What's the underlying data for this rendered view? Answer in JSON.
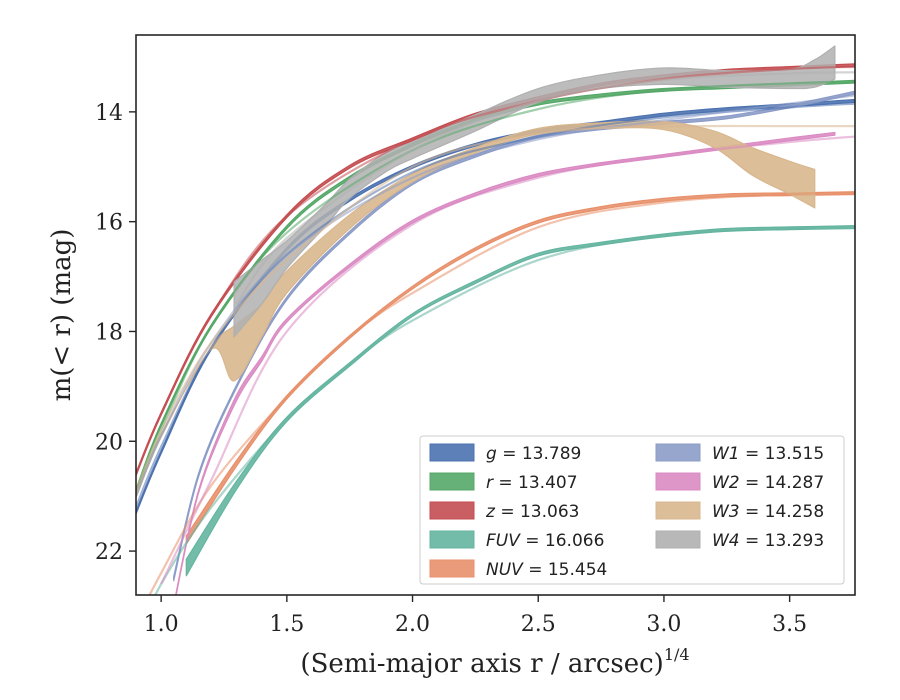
{
  "chart_data": {
    "type": "line",
    "title": "",
    "xlabel": "(Semi-major axis r / arcsec)",
    "xlabel_exponent": "1/4",
    "ylabel": "m(< r) (mag)",
    "xlim": [
      0.9,
      3.76
    ],
    "ylim": [
      22.8,
      12.6
    ],
    "y_inverted": true,
    "grid": false,
    "legend_position": "lower-right",
    "x_ticks": [
      {
        "v": 1.0,
        "label": "1.0"
      },
      {
        "v": 1.5,
        "label": "1.5"
      },
      {
        "v": 2.0,
        "label": "2.0"
      },
      {
        "v": 2.5,
        "label": "2.5"
      },
      {
        "v": 3.0,
        "label": "3.0"
      },
      {
        "v": 3.5,
        "label": "3.5"
      }
    ],
    "y_ticks": [
      {
        "v": 14,
        "label": "14"
      },
      {
        "v": 16,
        "label": "16"
      },
      {
        "v": 18,
        "label": "18"
      },
      {
        "v": 20,
        "label": "20"
      },
      {
        "v": 22,
        "label": "22"
      }
    ],
    "series": [
      {
        "key": "g",
        "name": "g = 13.789",
        "color": "#4c72b0",
        "x": [
          0.9,
          1.0,
          1.2,
          1.5,
          1.75,
          2.0,
          2.25,
          2.5,
          2.75,
          3.0,
          3.25,
          3.5,
          3.76
        ],
        "y": [
          21.3,
          20.2,
          18.3,
          16.5,
          15.6,
          15.0,
          14.6,
          14.35,
          14.2,
          14.05,
          13.95,
          13.88,
          13.8
        ],
        "width": [
          0.05,
          0.05,
          0.05,
          0.05,
          0.05,
          0.05,
          0.05,
          0.05,
          0.05,
          0.05,
          0.05,
          0.05,
          0.05
        ],
        "model": {
          "x": [
            0.9,
            1.0,
            1.2,
            1.5,
            2.0,
            2.5,
            3.0,
            3.5,
            3.76
          ],
          "y": [
            21.2,
            20.1,
            18.3,
            16.6,
            15.1,
            14.45,
            14.1,
            13.92,
            13.85
          ]
        }
      },
      {
        "key": "r",
        "name": "r = 13.407",
        "color": "#55a868",
        "x": [
          0.9,
          1.0,
          1.2,
          1.5,
          1.75,
          2.0,
          2.25,
          2.5,
          2.75,
          3.0,
          3.25,
          3.5,
          3.76
        ],
        "y": [
          20.9,
          19.7,
          17.9,
          16.1,
          15.2,
          14.6,
          14.15,
          13.85,
          13.7,
          13.6,
          13.55,
          13.5,
          13.45
        ],
        "width": [
          0.05,
          0.05,
          0.05,
          0.05,
          0.05,
          0.05,
          0.05,
          0.05,
          0.05,
          0.05,
          0.05,
          0.05,
          0.05
        ],
        "model": {
          "x": [
            0.9,
            1.0,
            1.2,
            1.5,
            2.0,
            2.5,
            3.0,
            3.5,
            3.76
          ],
          "y": [
            20.9,
            19.8,
            17.9,
            16.2,
            14.7,
            13.95,
            13.6,
            13.48,
            13.45
          ]
        }
      },
      {
        "key": "z",
        "name": "z = 13.063",
        "color": "#c44e52",
        "x": [
          0.9,
          1.0,
          1.2,
          1.5,
          1.75,
          2.0,
          2.25,
          2.5,
          2.75,
          3.0,
          3.25,
          3.5,
          3.76
        ],
        "y": [
          20.6,
          19.5,
          17.7,
          15.9,
          15.0,
          14.5,
          14.05,
          13.75,
          13.5,
          13.35,
          13.25,
          13.2,
          13.15
        ],
        "width": [
          0.05,
          0.05,
          0.05,
          0.05,
          0.05,
          0.05,
          0.05,
          0.05,
          0.05,
          0.05,
          0.05,
          0.05,
          0.05
        ],
        "model": {
          "x": [
            0.9,
            1.0,
            1.2,
            1.5,
            2.0,
            2.5,
            3.0,
            3.5,
            3.76
          ],
          "y": [
            20.6,
            19.5,
            17.7,
            15.9,
            14.5,
            13.8,
            13.4,
            13.22,
            13.18
          ]
        }
      },
      {
        "key": "FUV",
        "name": "FUV = 16.066",
        "color": "#64b5a0",
        "x": [
          1.1,
          1.3,
          1.5,
          1.75,
          2.0,
          2.25,
          2.5,
          2.75,
          3.0,
          3.25,
          3.5,
          3.76
        ],
        "y": [
          22.3,
          20.8,
          19.6,
          18.6,
          17.7,
          17.1,
          16.6,
          16.4,
          16.25,
          16.15,
          16.12,
          16.1
        ],
        "width": [
          0.3,
          0.15,
          0.08,
          0.06,
          0.05,
          0.05,
          0.05,
          0.05,
          0.05,
          0.05,
          0.05,
          0.05
        ],
        "model": {
          "x": [
            0.9,
            1.0,
            1.2,
            1.5,
            1.75,
            2.0,
            2.5,
            3.0,
            3.5,
            3.76
          ],
          "y": [
            23.6,
            22.6,
            21.2,
            19.6,
            18.6,
            17.8,
            16.7,
            16.25,
            16.12,
            16.08
          ]
        }
      },
      {
        "key": "NUV",
        "name": "NUV = 15.454",
        "color": "#e8906a",
        "x": [
          1.1,
          1.3,
          1.5,
          1.75,
          2.0,
          2.25,
          2.5,
          2.75,
          3.0,
          3.25,
          3.5,
          3.76
        ],
        "y": [
          21.8,
          20.4,
          19.2,
          18.1,
          17.2,
          16.5,
          16.0,
          15.75,
          15.6,
          15.52,
          15.5,
          15.48
        ],
        "width": [
          0.15,
          0.1,
          0.06,
          0.05,
          0.05,
          0.05,
          0.05,
          0.05,
          0.05,
          0.05,
          0.05,
          0.05
        ],
        "model": {
          "x": [
            0.9,
            1.0,
            1.2,
            1.5,
            1.75,
            2.0,
            2.5,
            3.0,
            3.5,
            3.76
          ],
          "y": [
            23.3,
            22.4,
            20.8,
            19.2,
            18.1,
            17.3,
            16.1,
            15.65,
            15.5,
            15.47
          ]
        }
      },
      {
        "key": "W1",
        "name": "W1 = 13.515",
        "color": "#8c9cc8",
        "x": [
          1.05,
          1.15,
          1.3,
          1.5,
          1.75,
          2.0,
          2.25,
          2.5,
          2.75,
          3.0,
          3.25,
          3.5,
          3.76
        ],
        "y": [
          22.5,
          20.6,
          19.0,
          17.4,
          16.2,
          15.3,
          14.8,
          14.45,
          14.3,
          14.2,
          14.1,
          13.9,
          13.65
        ],
        "width": [
          0.08,
          0.06,
          0.05,
          0.05,
          0.05,
          0.05,
          0.05,
          0.05,
          0.05,
          0.05,
          0.05,
          0.05,
          0.05
        ],
        "model": {
          "x": [
            0.9,
            1.0,
            1.2,
            1.5,
            2.0,
            2.5,
            3.0,
            3.5,
            3.76
          ],
          "y": [
            21.0,
            19.9,
            18.2,
            16.6,
            15.2,
            14.5,
            14.15,
            13.85,
            13.7
          ]
        }
      },
      {
        "key": "W2",
        "name": "W2 = 14.287",
        "color": "#da8bc3",
        "x": [
          1.05,
          1.15,
          1.29,
          1.4,
          1.5,
          1.75,
          2.0,
          2.25,
          2.5,
          2.75,
          3.0,
          3.25,
          3.5,
          3.68
        ],
        "y": [
          23.0,
          20.9,
          19.3,
          18.5,
          17.8,
          16.8,
          16.0,
          15.5,
          15.15,
          14.95,
          14.8,
          14.65,
          14.5,
          14.4
        ],
        "width": [
          0.05,
          0.05,
          0.1,
          0.08,
          0.06,
          0.05,
          0.05,
          0.05,
          0.05,
          0.05,
          0.05,
          0.05,
          0.05,
          0.05
        ],
        "model": {
          "x": [
            1.0,
            1.2,
            1.5,
            2.0,
            2.5,
            3.0,
            3.5,
            3.76
          ],
          "y": [
            22.6,
            20.7,
            18.0,
            16.05,
            15.2,
            14.8,
            14.55,
            14.45
          ]
        }
      },
      {
        "key": "W3",
        "name": "W3 = 14.258",
        "color": "#d8b78e",
        "x": [
          0.9,
          1.0,
          1.2,
          1.29,
          1.4,
          1.5,
          1.75,
          2.0,
          2.25,
          2.5,
          2.75,
          3.0,
          3.2,
          3.35,
          3.5,
          3.6
        ],
        "y": [
          21.0,
          19.9,
          18.3,
          18.4,
          17.8,
          17.1,
          16.0,
          15.2,
          14.7,
          14.35,
          14.25,
          14.25,
          14.5,
          14.9,
          15.2,
          15.4
        ],
        "width": [
          0.05,
          0.05,
          0.05,
          1.0,
          0.6,
          0.4,
          0.25,
          0.15,
          0.1,
          0.1,
          0.1,
          0.15,
          0.3,
          0.5,
          0.6,
          0.7
        ],
        "model": {
          "x": [
            0.9,
            1.0,
            1.2,
            1.5,
            2.0,
            2.5,
            3.0,
            3.5,
            3.76
          ],
          "y": [
            20.9,
            19.8,
            18.2,
            16.7,
            15.0,
            14.4,
            14.27,
            14.26,
            14.26
          ]
        }
      },
      {
        "key": "W4",
        "name": "W4 = 13.293",
        "color": "#b0b0b0",
        "x": [
          1.29,
          1.4,
          1.5,
          1.65,
          1.75,
          1.9,
          2.0,
          2.25,
          2.5,
          2.75,
          3.0,
          3.25,
          3.5,
          3.6,
          3.68
        ],
        "y": [
          17.6,
          17.1,
          16.6,
          15.9,
          15.4,
          14.9,
          14.7,
          14.2,
          13.7,
          13.45,
          13.35,
          13.4,
          13.4,
          13.3,
          13.1
        ],
        "width": [
          1.0,
          0.8,
          0.5,
          0.4,
          0.35,
          0.35,
          0.3,
          0.3,
          0.25,
          0.25,
          0.3,
          0.3,
          0.35,
          0.5,
          0.6
        ],
        "model": {
          "x": [
            1.3,
            1.5,
            2.0,
            2.5,
            3.0,
            3.5,
            3.76
          ],
          "y": [
            17.5,
            16.3,
            14.7,
            13.8,
            13.42,
            13.3,
            13.28
          ]
        }
      }
    ]
  }
}
